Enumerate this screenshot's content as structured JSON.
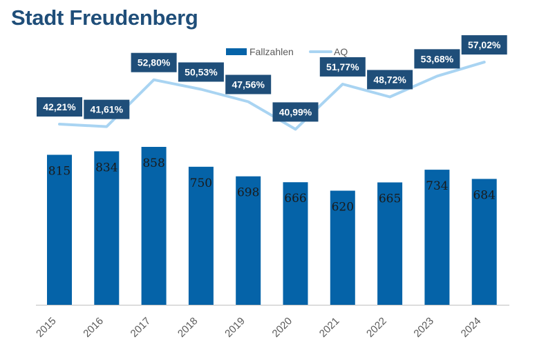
{
  "title": "Stadt Freudenberg",
  "chart_data": {
    "type": "bar",
    "categories": [
      "2015",
      "2016",
      "2017",
      "2018",
      "2019",
      "2020",
      "2021",
      "2022",
      "2023",
      "2024"
    ],
    "series": [
      {
        "name": "Fallzahlen",
        "type": "bar",
        "values": [
          815,
          834,
          858,
          750,
          698,
          666,
          620,
          665,
          734,
          684
        ],
        "labels": [
          "815",
          "834",
          "858",
          "750",
          "698",
          "666",
          "620",
          "665",
          "734",
          "684"
        ],
        "color": "#0563a8"
      },
      {
        "name": "AQ",
        "type": "line",
        "values": [
          42.21,
          41.61,
          52.8,
          50.53,
          47.56,
          40.99,
          51.77,
          48.72,
          53.68,
          57.02
        ],
        "labels": [
          "42,21%",
          "41,61%",
          "52,80%",
          "50,53%",
          "47,56%",
          "40,99%",
          "51,77%",
          "48,72%",
          "53,68%",
          "57,02%"
        ],
        "color": "#a9d4f2"
      }
    ],
    "legend_position": "top",
    "grid": false,
    "label_box_color": "#1f4e79",
    "axis_color": "#bfbfbf"
  }
}
